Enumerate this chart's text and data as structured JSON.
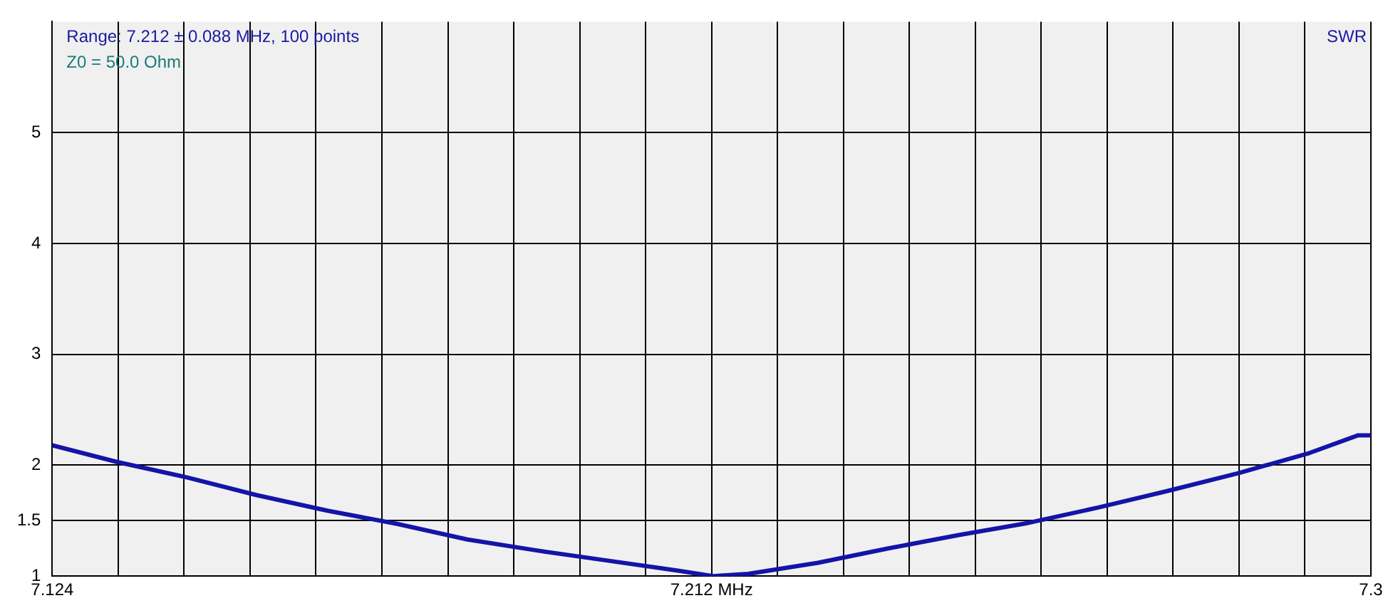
{
  "chart_data": {
    "type": "line",
    "annotations": [
      "Range: 7.212 ± 0.088 MHz, 100 points",
      "Z0 = 50.0 Ohm",
      "SWR"
    ],
    "xlim": [
      7.124,
      7.3
    ],
    "ylim": [
      1,
      6
    ],
    "xticks": [
      {
        "value": 7.124,
        "label": "7.124"
      },
      {
        "value": 7.1328,
        "label": null
      },
      {
        "value": 7.1416,
        "label": null
      },
      {
        "value": 7.1504,
        "label": null
      },
      {
        "value": 7.1592,
        "label": null
      },
      {
        "value": 7.168,
        "label": null
      },
      {
        "value": 7.1768,
        "label": null
      },
      {
        "value": 7.1856,
        "label": null
      },
      {
        "value": 7.1944,
        "label": null
      },
      {
        "value": 7.2032,
        "label": null
      },
      {
        "value": 7.212,
        "label": "7.212 MHz"
      },
      {
        "value": 7.2208,
        "label": null
      },
      {
        "value": 7.2296,
        "label": null
      },
      {
        "value": 7.2384,
        "label": null
      },
      {
        "value": 7.2472,
        "label": null
      },
      {
        "value": 7.256,
        "label": null
      },
      {
        "value": 7.2648,
        "label": null
      },
      {
        "value": 7.2736,
        "label": null
      },
      {
        "value": 7.2824,
        "label": null
      },
      {
        "value": 7.2912,
        "label": null
      },
      {
        "value": 7.3,
        "label": "7.3"
      }
    ],
    "yticks": [
      1,
      1.5,
      2,
      3,
      4,
      5
    ],
    "grid": true,
    "marker": "none",
    "line_style": "solid",
    "series": [
      {
        "color": "#1414a8",
        "x": [
          7.124,
          7.1326,
          7.142,
          7.1513,
          7.1607,
          7.1701,
          7.1794,
          7.1888,
          7.1981,
          7.2075,
          7.2122,
          7.2169,
          7.2262,
          7.2356,
          7.245,
          7.2543,
          7.2637,
          7.273,
          7.2824,
          7.2918,
          7.2983,
          7.3
        ],
        "values": [
          2.18,
          2.03,
          1.89,
          1.73,
          1.59,
          1.47,
          1.33,
          1.23,
          1.14,
          1.05,
          1.0,
          1.02,
          1.12,
          1.25,
          1.37,
          1.48,
          1.62,
          1.77,
          1.93,
          2.11,
          2.27,
          2.27
        ]
      }
    ]
  }
}
